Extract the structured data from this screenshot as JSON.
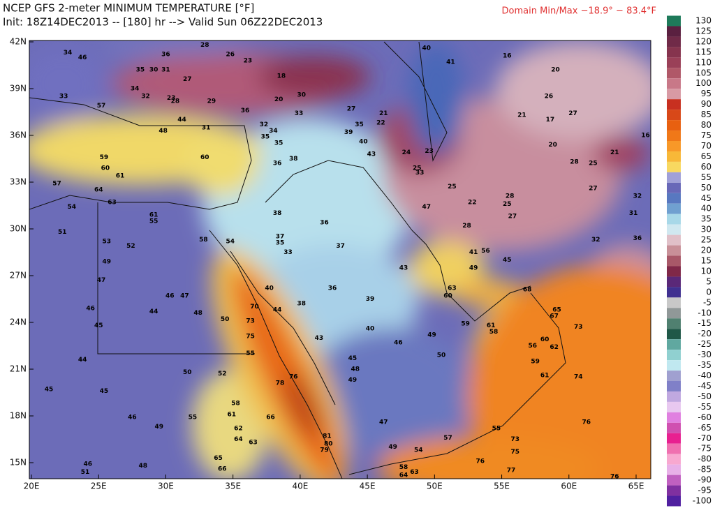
{
  "header": {
    "title": "NCEP GFS 2-meter MINIMUM TEMPERATURE [°F]",
    "subtitle": "Init: 18Z14DEC2013 -- [180] hr --> Valid Sun 06Z22DEC2013",
    "domain_minmax": "Domain Min/Max −18.9° − 83.4°F"
  },
  "map": {
    "lon_ticks": [
      {
        "value": 20,
        "label": "20E"
      },
      {
        "value": 25,
        "label": "25E"
      },
      {
        "value": 30,
        "label": "30E"
      },
      {
        "value": 35,
        "label": "35E"
      },
      {
        "value": 40,
        "label": "40E"
      },
      {
        "value": 45,
        "label": "45E"
      },
      {
        "value": 50,
        "label": "50E"
      },
      {
        "value": 55,
        "label": "55E"
      },
      {
        "value": 60,
        "label": "60E"
      },
      {
        "value": 65,
        "label": "65E"
      }
    ],
    "lat_ticks": [
      {
        "value": 42,
        "label": "42N"
      },
      {
        "value": 39,
        "label": "39N"
      },
      {
        "value": 36,
        "label": "36N"
      },
      {
        "value": 33,
        "label": "33N"
      },
      {
        "value": 30,
        "label": "30N"
      },
      {
        "value": 27,
        "label": "27N"
      },
      {
        "value": 24,
        "label": "24N"
      },
      {
        "value": 21,
        "label": "21N"
      },
      {
        "value": 18,
        "label": "18N"
      },
      {
        "value": 15,
        "label": "15N"
      }
    ],
    "points": [
      [
        32.9,
        34.6,
        60
      ],
      [
        25.4,
        34.6,
        59
      ],
      [
        25.5,
        33.9,
        60
      ],
      [
        21.9,
        32.9,
        57
      ],
      [
        25.0,
        32.5,
        64
      ],
      [
        23.0,
        31.4,
        54
      ],
      [
        22.3,
        29.8,
        51
      ],
      [
        25.6,
        29.2,
        53
      ],
      [
        27.4,
        28.9,
        52
      ],
      [
        25.6,
        27.9,
        49
      ],
      [
        25.2,
        26.7,
        47
      ],
      [
        24.4,
        24.9,
        46
      ],
      [
        29.1,
        24.7,
        44
      ],
      [
        30.3,
        25.7,
        46
      ],
      [
        31.4,
        25.7,
        47
      ],
      [
        32.4,
        24.6,
        48
      ],
      [
        34.4,
        24.2,
        50
      ],
      [
        25.0,
        23.8,
        45
      ],
      [
        23.8,
        21.6,
        44
      ],
      [
        21.3,
        19.7,
        45
      ],
      [
        27.5,
        17.9,
        46
      ],
      [
        29.5,
        17.3,
        49
      ],
      [
        32.0,
        17.9,
        55
      ],
      [
        31.6,
        20.8,
        50
      ],
      [
        34.2,
        20.7,
        52
      ],
      [
        25.4,
        19.6,
        45
      ],
      [
        28.3,
        14.8,
        48
      ],
      [
        24.2,
        14.9,
        46
      ],
      [
        24.0,
        14.4,
        51
      ],
      [
        33.9,
        15.3,
        65
      ],
      [
        34.2,
        14.6,
        66
      ],
      [
        35.2,
        18.8,
        58
      ],
      [
        34.9,
        18.1,
        61
      ],
      [
        35.4,
        17.2,
        62
      ],
      [
        35.4,
        16.5,
        64
      ],
      [
        36.5,
        16.3,
        63
      ],
      [
        37.8,
        17.9,
        66
      ],
      [
        38.5,
        20.1,
        78
      ],
      [
        39.5,
        20.5,
        76
      ],
      [
        42.0,
        16.7,
        81
      ],
      [
        42.1,
        16.2,
        80
      ],
      [
        41.8,
        15.8,
        79
      ],
      [
        36.3,
        24.1,
        73
      ],
      [
        36.6,
        25.0,
        70
      ],
      [
        36.3,
        23.1,
        75
      ],
      [
        36.3,
        22.0,
        55
      ],
      [
        37.7,
        26.2,
        40
      ],
      [
        38.3,
        24.8,
        44
      ],
      [
        40.1,
        25.2,
        38
      ],
      [
        42.4,
        26.2,
        36
      ],
      [
        45.2,
        25.5,
        39
      ],
      [
        45.2,
        23.6,
        40
      ],
      [
        41.4,
        23.0,
        43
      ],
      [
        43.9,
        21.7,
        45
      ],
      [
        44.1,
        21.0,
        48
      ],
      [
        47.3,
        22.7,
        46
      ],
      [
        50.5,
        21.9,
        50
      ],
      [
        49.8,
        23.2,
        49
      ],
      [
        46.2,
        17.6,
        47
      ],
      [
        43.9,
        20.3,
        49
      ],
      [
        46.9,
        16.0,
        49
      ],
      [
        48.8,
        15.8,
        54
      ],
      [
        47.7,
        14.7,
        58
      ],
      [
        47.7,
        14.2,
        64
      ],
      [
        48.5,
        14.4,
        63
      ],
      [
        51.0,
        16.6,
        57
      ],
      [
        54.6,
        17.2,
        55
      ],
      [
        56.0,
        16.5,
        73
      ],
      [
        56.0,
        15.7,
        75
      ],
      [
        53.4,
        15.1,
        76
      ],
      [
        55.7,
        14.5,
        77
      ],
      [
        63.4,
        14.1,
        76
      ],
      [
        61.3,
        17.6,
        76
      ],
      [
        60.7,
        20.5,
        74
      ],
      [
        60.7,
        23.7,
        73
      ],
      [
        58.9,
        24.4,
        67
      ],
      [
        59.1,
        24.8,
        65
      ],
      [
        58.9,
        22.4,
        62
      ],
      [
        58.2,
        22.9,
        60
      ],
      [
        57.3,
        22.5,
        56
      ],
      [
        57.5,
        21.5,
        59
      ],
      [
        58.2,
        20.6,
        61
      ],
      [
        56.9,
        26.1,
        68
      ],
      [
        52.3,
        23.9,
        59
      ],
      [
        54.2,
        23.8,
        61
      ],
      [
        54.4,
        23.4,
        58
      ],
      [
        51.0,
        25.7,
        60
      ],
      [
        51.3,
        26.2,
        63
      ],
      [
        47.7,
        27.5,
        43
      ],
      [
        49.4,
        31.4,
        47
      ],
      [
        52.9,
        28.5,
        41
      ],
      [
        53.8,
        28.6,
        56
      ],
      [
        52.9,
        27.5,
        49
      ],
      [
        55.4,
        28.0,
        45
      ],
      [
        65.1,
        32.1,
        32
      ],
      [
        64.8,
        31.0,
        31
      ],
      [
        65.1,
        29.4,
        36
      ],
      [
        62.0,
        29.3,
        32
      ],
      [
        61.8,
        32.6,
        27
      ],
      [
        61.8,
        34.2,
        25
      ],
      [
        60.4,
        34.3,
        28
      ],
      [
        63.4,
        34.9,
        21
      ],
      [
        65.7,
        36.0,
        16
      ],
      [
        58.8,
        35.4,
        20
      ],
      [
        58.6,
        37.0,
        17
      ],
      [
        56.5,
        37.3,
        21
      ],
      [
        60.3,
        37.4,
        27
      ],
      [
        58.5,
        38.5,
        26
      ],
      [
        59.0,
        40.2,
        20
      ],
      [
        55.4,
        41.1,
        16
      ],
      [
        49.4,
        41.6,
        40
      ],
      [
        51.2,
        40.7,
        41
      ],
      [
        55.6,
        32.1,
        28
      ],
      [
        55.4,
        31.6,
        25
      ],
      [
        52.8,
        31.7,
        22
      ],
      [
        51.3,
        32.7,
        25
      ],
      [
        55.8,
        30.8,
        27
      ],
      [
        52.4,
        30.2,
        28
      ],
      [
        48.9,
        33.6,
        33
      ],
      [
        48.7,
        33.9,
        25
      ],
      [
        47.9,
        34.9,
        24
      ],
      [
        49.6,
        35.0,
        23
      ],
      [
        46.2,
        37.4,
        21
      ],
      [
        46.0,
        36.8,
        22
      ],
      [
        43.8,
        37.7,
        27
      ],
      [
        43.6,
        36.2,
        39
      ],
      [
        44.4,
        36.7,
        35
      ],
      [
        44.7,
        35.6,
        40
      ],
      [
        45.3,
        34.8,
        43
      ],
      [
        38.3,
        34.2,
        36
      ],
      [
        39.5,
        34.5,
        38
      ],
      [
        38.4,
        35.5,
        35
      ],
      [
        38.0,
        36.3,
        34
      ],
      [
        37.4,
        35.9,
        35
      ],
      [
        38.3,
        31.0,
        38
      ],
      [
        38.5,
        29.5,
        37
      ],
      [
        38.5,
        29.1,
        35
      ],
      [
        39.1,
        28.5,
        33
      ],
      [
        43.0,
        28.9,
        37
      ],
      [
        41.8,
        30.4,
        36
      ],
      [
        34.8,
        29.2,
        54
      ],
      [
        32.8,
        29.3,
        58
      ],
      [
        29.1,
        30.5,
        55
      ],
      [
        29.1,
        30.9,
        61
      ],
      [
        26.0,
        31.7,
        63
      ],
      [
        26.6,
        33.4,
        61
      ],
      [
        30.4,
        38.4,
        23
      ],
      [
        30.7,
        38.2,
        28
      ],
      [
        28.5,
        38.5,
        32
      ],
      [
        27.7,
        39.0,
        34
      ],
      [
        29.1,
        40.2,
        30
      ],
      [
        30.0,
        40.2,
        31
      ],
      [
        28.1,
        40.2,
        35
      ],
      [
        30.0,
        41.2,
        36
      ],
      [
        34.8,
        41.2,
        26
      ],
      [
        32.9,
        41.8,
        28
      ],
      [
        36.1,
        40.8,
        23
      ],
      [
        38.6,
        39.8,
        18
      ],
      [
        38.4,
        38.3,
        20
      ],
      [
        40.1,
        38.6,
        30
      ],
      [
        39.9,
        37.4,
        33
      ],
      [
        35.9,
        37.6,
        36
      ],
      [
        37.3,
        36.7,
        32
      ],
      [
        33.4,
        38.2,
        29
      ],
      [
        31.6,
        39.6,
        27
      ],
      [
        31.2,
        37.0,
        44
      ],
      [
        29.8,
        36.3,
        48
      ],
      [
        33.0,
        36.5,
        31
      ],
      [
        22.7,
        41.3,
        34
      ],
      [
        23.8,
        41.0,
        46
      ],
      [
        22.4,
        38.5,
        33
      ],
      [
        25.2,
        37.9,
        57
      ]
    ]
  },
  "colorbar": {
    "ticks": [
      130,
      125,
      120,
      115,
      110,
      105,
      100,
      95,
      90,
      85,
      80,
      75,
      70,
      65,
      60,
      55,
      50,
      45,
      40,
      35,
      30,
      25,
      20,
      15,
      10,
      5,
      0,
      -5,
      -10,
      -15,
      -20,
      -25,
      -30,
      -35,
      -40,
      -45,
      -50,
      -55,
      -60,
      -65,
      -70,
      -75,
      -80,
      -85,
      -90,
      -95,
      -100
    ]
  }
}
